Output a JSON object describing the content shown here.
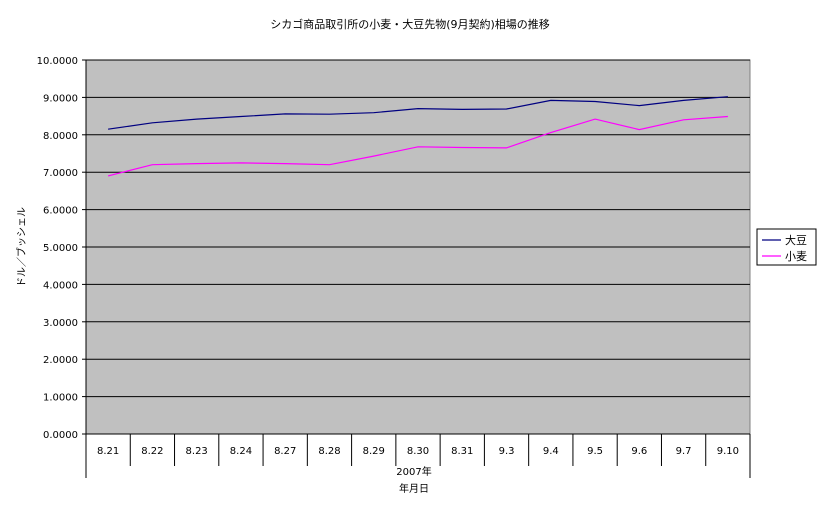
{
  "chart_data": {
    "type": "line",
    "title": "シカゴ商品取引所の小麦・大豆先物(9月契約)相場の推移",
    "xlabel_line1": "2007年",
    "xlabel_line2": "年月日",
    "ylabel": "ドル／ブッシェル",
    "ylim": [
      0,
      10
    ],
    "yticks": [
      "0.0000",
      "1.0000",
      "2.0000",
      "3.0000",
      "4.0000",
      "5.0000",
      "6.0000",
      "7.0000",
      "8.0000",
      "9.0000",
      "10.0000"
    ],
    "categories": [
      "8.21",
      "8.22",
      "8.23",
      "8.24",
      "8.27",
      "8.28",
      "8.29",
      "8.30",
      "8.31",
      "9.3",
      "9.4",
      "9.5",
      "9.6",
      "9.7",
      "9.10"
    ],
    "series": [
      {
        "name": "大豆",
        "color": "#000080",
        "values": [
          8.15,
          8.32,
          8.42,
          8.49,
          8.56,
          8.55,
          8.59,
          8.7,
          8.68,
          8.69,
          8.92,
          8.89,
          8.78,
          8.92,
          9.02
        ]
      },
      {
        "name": "小麦",
        "color": "#ff00ff",
        "values": [
          6.9,
          7.2,
          7.23,
          7.25,
          7.23,
          7.2,
          7.43,
          7.68,
          7.66,
          7.65,
          8.06,
          8.42,
          8.14,
          8.4,
          8.49
        ]
      }
    ],
    "grid": true,
    "plot_background": "#c0c0c0",
    "legend_position": "right"
  }
}
